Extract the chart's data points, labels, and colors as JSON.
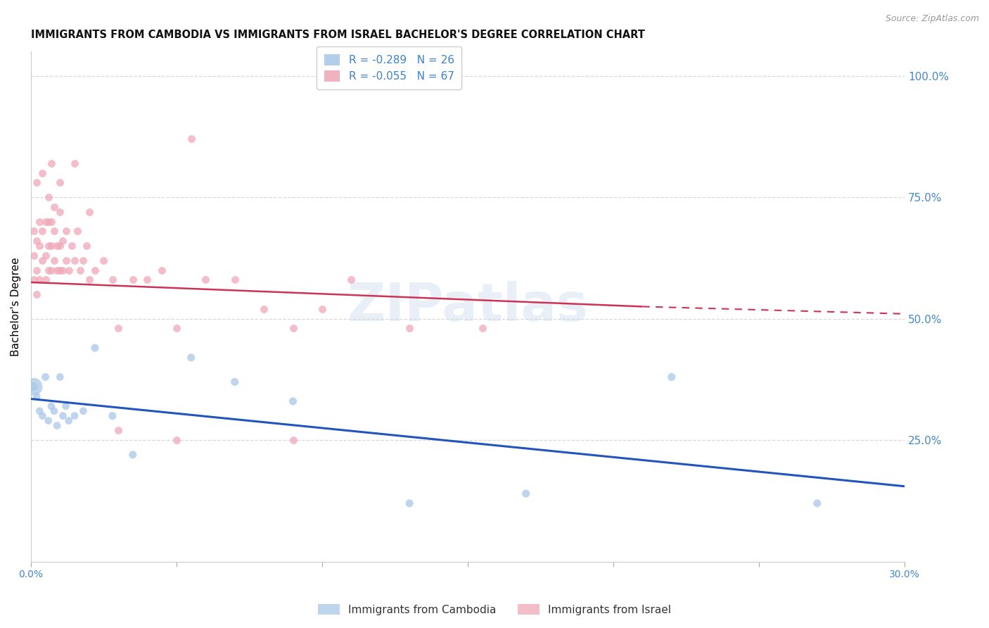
{
  "title": "IMMIGRANTS FROM CAMBODIA VS IMMIGRANTS FROM ISRAEL BACHELOR'S DEGREE CORRELATION CHART",
  "source": "Source: ZipAtlas.com",
  "ylabel": "Bachelor's Degree",
  "right_yticks": [
    "100.0%",
    "75.0%",
    "50.0%",
    "25.0%"
  ],
  "right_ytick_vals": [
    1.0,
    0.75,
    0.5,
    0.25
  ],
  "xlim": [
    0.0,
    0.3
  ],
  "ylim": [
    0.0,
    1.05
  ],
  "watermark": "ZIPatlas",
  "legend_labels": [
    "Immigrants from Cambodia",
    "Immigrants from Israel"
  ],
  "cambodia_color": "#a8c8e8",
  "israel_color": "#f0a8b8",
  "cambodia_R": -0.289,
  "cambodia_N": 26,
  "israel_R": -0.055,
  "israel_N": 67,
  "grid_color": "#d8d8d8",
  "axis_label_color": "#4488cc",
  "background_color": "#ffffff",
  "cambodia_line_color": "#2255bb",
  "israel_line_color": "#cc3355",
  "cambodia_x": [
    0.001,
    0.002,
    0.003,
    0.004,
    0.005,
    0.006,
    0.007,
    0.008,
    0.009,
    0.01,
    0.011,
    0.012,
    0.013,
    0.015,
    0.018,
    0.022,
    0.028,
    0.035,
    0.055,
    0.07,
    0.09,
    0.13,
    0.17,
    0.22,
    0.27,
    0.001
  ],
  "cambodia_y": [
    0.36,
    0.34,
    0.31,
    0.3,
    0.38,
    0.29,
    0.32,
    0.31,
    0.28,
    0.38,
    0.3,
    0.32,
    0.29,
    0.3,
    0.31,
    0.44,
    0.3,
    0.22,
    0.42,
    0.37,
    0.33,
    0.12,
    0.14,
    0.38,
    0.12,
    0.36
  ],
  "cambodia_s": [
    70,
    60,
    60,
    60,
    65,
    60,
    60,
    60,
    60,
    60,
    60,
    60,
    60,
    60,
    60,
    65,
    65,
    65,
    65,
    65,
    65,
    65,
    65,
    65,
    65,
    320
  ],
  "israel_x": [
    0.001,
    0.001,
    0.001,
    0.002,
    0.002,
    0.002,
    0.003,
    0.003,
    0.003,
    0.004,
    0.004,
    0.005,
    0.005,
    0.005,
    0.006,
    0.006,
    0.006,
    0.006,
    0.007,
    0.007,
    0.007,
    0.008,
    0.008,
    0.008,
    0.009,
    0.009,
    0.01,
    0.01,
    0.01,
    0.011,
    0.011,
    0.012,
    0.012,
    0.013,
    0.014,
    0.015,
    0.016,
    0.017,
    0.018,
    0.019,
    0.02,
    0.022,
    0.025,
    0.028,
    0.03,
    0.035,
    0.04,
    0.045,
    0.05,
    0.055,
    0.06,
    0.07,
    0.08,
    0.09,
    0.1,
    0.11,
    0.13,
    0.155,
    0.002,
    0.004,
    0.007,
    0.01,
    0.015,
    0.02,
    0.03,
    0.05,
    0.09
  ],
  "israel_y": [
    0.58,
    0.63,
    0.68,
    0.55,
    0.6,
    0.66,
    0.58,
    0.65,
    0.7,
    0.62,
    0.68,
    0.58,
    0.63,
    0.7,
    0.6,
    0.65,
    0.7,
    0.75,
    0.6,
    0.65,
    0.7,
    0.62,
    0.68,
    0.73,
    0.6,
    0.65,
    0.6,
    0.65,
    0.72,
    0.6,
    0.66,
    0.62,
    0.68,
    0.6,
    0.65,
    0.62,
    0.68,
    0.6,
    0.62,
    0.65,
    0.58,
    0.6,
    0.62,
    0.58,
    0.48,
    0.58,
    0.58,
    0.6,
    0.48,
    0.87,
    0.58,
    0.58,
    0.52,
    0.48,
    0.52,
    0.58,
    0.48,
    0.48,
    0.78,
    0.8,
    0.82,
    0.78,
    0.82,
    0.72,
    0.27,
    0.25,
    0.25
  ],
  "cambodia_line_x": [
    0.0,
    0.3
  ],
  "cambodia_line_y": [
    0.335,
    0.155
  ],
  "israel_line_x": [
    0.0,
    0.21,
    0.3
  ],
  "israel_line_y": [
    0.575,
    0.525,
    0.51
  ]
}
